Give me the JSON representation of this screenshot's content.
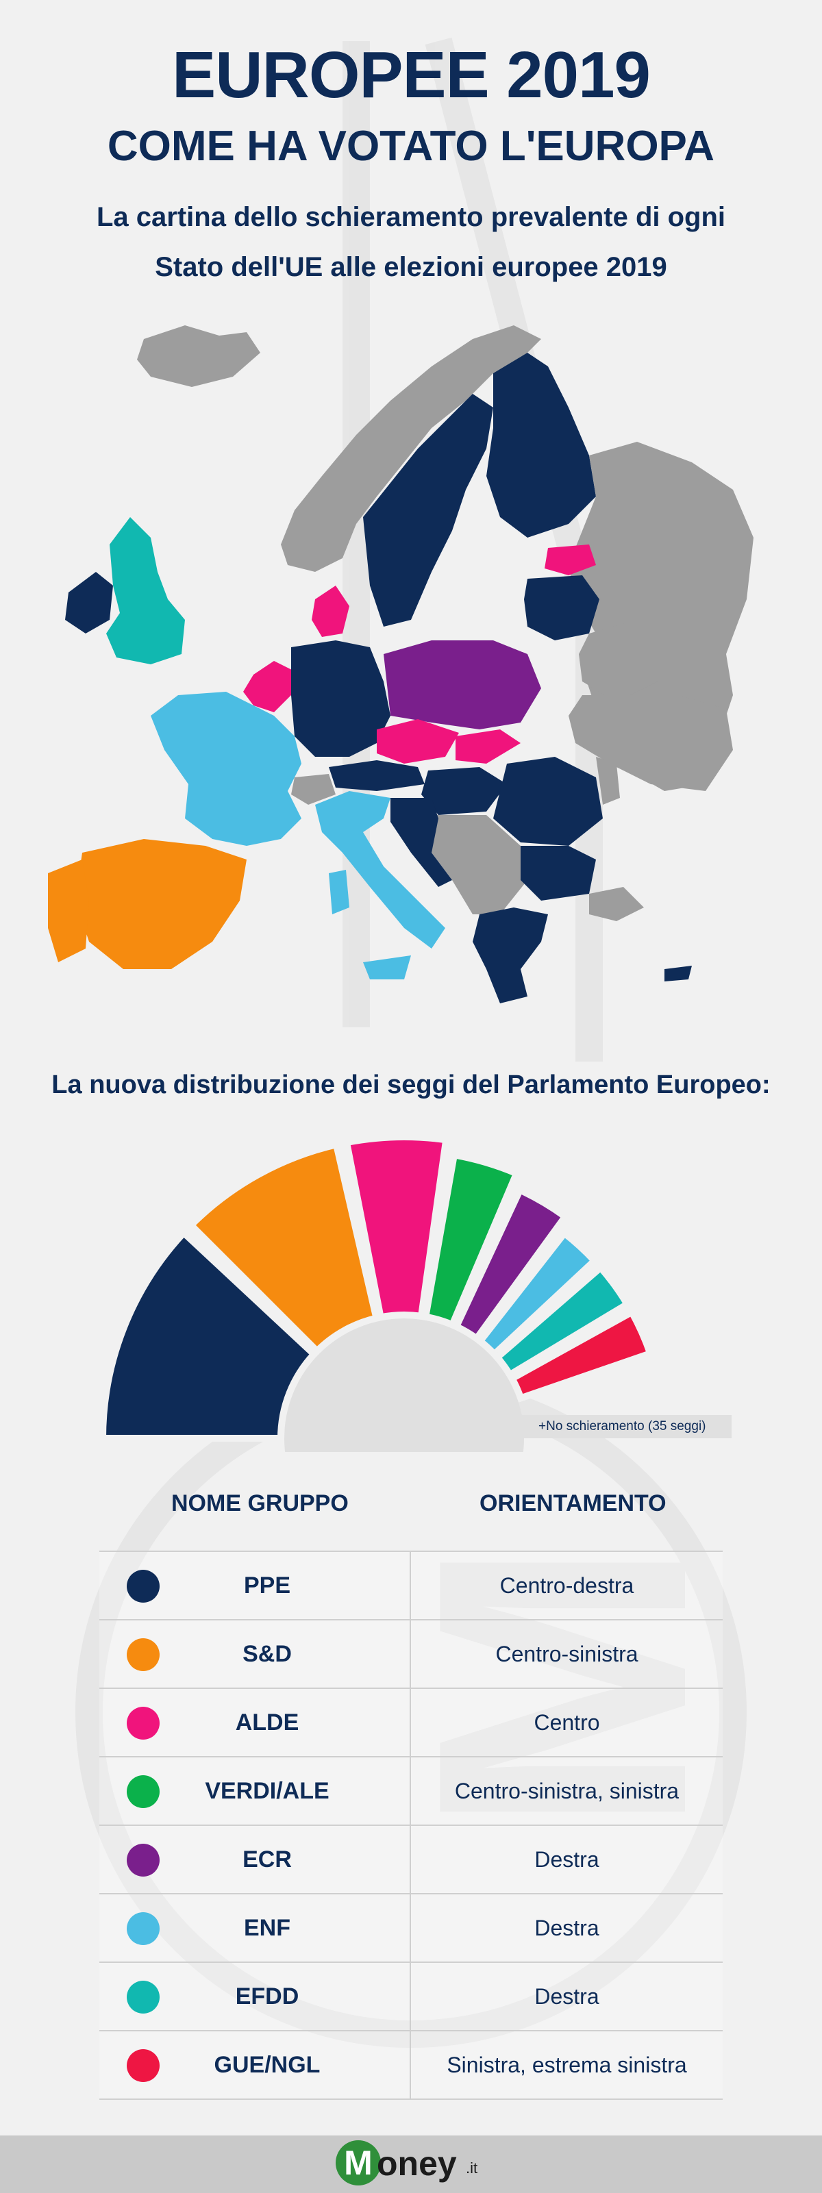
{
  "header": {
    "title": "EUROPEE 2019",
    "subtitle": "COME HA VOTATO L'EUROPA",
    "description_line1": "La cartina dello schieramento prevalente di ogni",
    "description_line2": "Stato dell'UE alle elezioni europee 2019"
  },
  "map": {
    "colors": {
      "PPE": "#0e2b57",
      "S&D": "#f68b0f",
      "ALDE": "#f0147c",
      "ECR": "#7a1f8c",
      "ENF": "#4bbde3",
      "EFDD": "#11b8b0",
      "non_eu": "#9d9d9d"
    }
  },
  "seats": {
    "title": "La nuova distribuzione dei seggi del Parlamento Europeo:",
    "note": "+No schieramento (35 seggi)"
  },
  "table": {
    "col_name": "NOME GRUPPO",
    "col_orientation": "ORIENTAMENTO",
    "rows": [
      {
        "name": "PPE",
        "orientation": "Centro-destra",
        "color": "#0e2b57"
      },
      {
        "name": "S&D",
        "orientation": "Centro-sinistra",
        "color": "#f68b0f"
      },
      {
        "name": "ALDE",
        "orientation": "Centro",
        "color": "#f0147c"
      },
      {
        "name": "VERDI/ALE",
        "orientation": "Centro-sinistra, sinistra",
        "color": "#0bb14b"
      },
      {
        "name": "ECR",
        "orientation": "Destra",
        "color": "#7a1f8c"
      },
      {
        "name": "ENF",
        "orientation": "Destra",
        "color": "#4bbde3"
      },
      {
        "name": "EFDD",
        "orientation": "Destra",
        "color": "#11b8b0"
      },
      {
        "name": "GUE/NGL",
        "orientation": "Sinistra, estrema sinistra",
        "color": "#ee1643"
      }
    ]
  },
  "footer": {
    "logo_initial": "M",
    "logo_text": "oney",
    "logo_suffix": ".it"
  }
}
